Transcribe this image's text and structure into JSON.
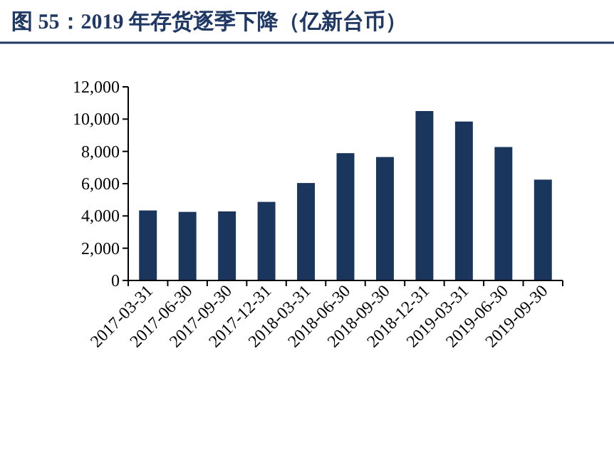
{
  "chart_data": {
    "type": "bar",
    "title": "图 55：2019 年存货逐季下降（亿新台币）",
    "categories": [
      "2017-03-31",
      "2017-06-30",
      "2017-09-30",
      "2017-12-31",
      "2018-03-31",
      "2018-06-30",
      "2018-09-30",
      "2018-12-31",
      "2019-03-31",
      "2019-06-30",
      "2019-09-30"
    ],
    "values": [
      4340,
      4250,
      4280,
      4870,
      6040,
      7890,
      7650,
      10500,
      9850,
      8270,
      6250
    ],
    "color": "#1a365d",
    "ylim": [
      0,
      12000
    ],
    "yticks": [
      {
        "value": 0,
        "label": "0"
      },
      {
        "value": 2000,
        "label": "2,000"
      },
      {
        "value": 4000,
        "label": "4,000"
      },
      {
        "value": 6000,
        "label": "6,000"
      },
      {
        "value": 8000,
        "label": "8,000"
      },
      {
        "value": 10000,
        "label": "10,000"
      },
      {
        "value": 12000,
        "label": "12,000"
      }
    ],
    "grid": false
  }
}
